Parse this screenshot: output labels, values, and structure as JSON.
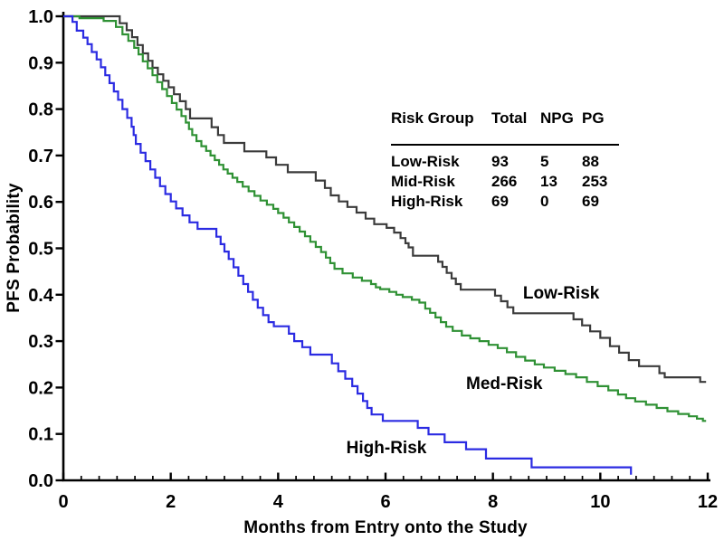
{
  "chart_data": {
    "type": "line",
    "subtype": "kaplan-meier-step",
    "title": "",
    "xlabel": "Months from Entry onto the Study",
    "ylabel": "PFS Probability",
    "xlim": [
      0,
      12
    ],
    "ylim": [
      0.0,
      1.0
    ],
    "xticks": [
      0,
      2,
      4,
      6,
      8,
      10,
      12
    ],
    "x_minor_ticks_per_interval": 5,
    "yticks": [
      0.0,
      0.1,
      0.2,
      0.3,
      0.4,
      0.5,
      0.6,
      0.7,
      0.8,
      0.9,
      1.0
    ],
    "grid": false,
    "legend_position": "labels-next-to-curves",
    "axis_color": "#000000",
    "background_color": "#ffffff",
    "series": [
      {
        "name": "Low-Risk",
        "color": "#3b3b3b",
        "label_at": {
          "x": 8.56,
          "y": 0.423
        },
        "points": [
          [
            0,
            1.0
          ],
          [
            1.05,
            0.985
          ],
          [
            1.18,
            0.97
          ],
          [
            1.28,
            0.955
          ],
          [
            1.38,
            0.938
          ],
          [
            1.48,
            0.92
          ],
          [
            1.58,
            0.904
          ],
          [
            1.66,
            0.889
          ],
          [
            1.76,
            0.875
          ],
          [
            1.86,
            0.861
          ],
          [
            1.96,
            0.847
          ],
          [
            2.06,
            0.832
          ],
          [
            2.17,
            0.817
          ],
          [
            2.28,
            0.8
          ],
          [
            2.36,
            0.78
          ],
          [
            2.76,
            0.761
          ],
          [
            2.88,
            0.744
          ],
          [
            2.99,
            0.727
          ],
          [
            3.37,
            0.709
          ],
          [
            3.78,
            0.696
          ],
          [
            3.96,
            0.68
          ],
          [
            4.18,
            0.664
          ],
          [
            4.7,
            0.646
          ],
          [
            4.87,
            0.63
          ],
          [
            4.98,
            0.614
          ],
          [
            5.13,
            0.601
          ],
          [
            5.29,
            0.589
          ],
          [
            5.46,
            0.577
          ],
          [
            5.63,
            0.564
          ],
          [
            5.79,
            0.552
          ],
          [
            6.02,
            0.544
          ],
          [
            6.16,
            0.534
          ],
          [
            6.28,
            0.522
          ],
          [
            6.37,
            0.511
          ],
          [
            6.43,
            0.502
          ],
          [
            6.51,
            0.484
          ],
          [
            6.98,
            0.471
          ],
          [
            7.06,
            0.46
          ],
          [
            7.14,
            0.447
          ],
          [
            7.23,
            0.435
          ],
          [
            7.31,
            0.423
          ],
          [
            7.4,
            0.411
          ],
          [
            8.04,
            0.398
          ],
          [
            8.15,
            0.386
          ],
          [
            8.27,
            0.373
          ],
          [
            8.38,
            0.36
          ],
          [
            9.5,
            0.347
          ],
          [
            9.66,
            0.334
          ],
          [
            9.81,
            0.321
          ],
          [
            10.0,
            0.307
          ],
          [
            10.18,
            0.289
          ],
          [
            10.35,
            0.275
          ],
          [
            10.53,
            0.259
          ],
          [
            10.72,
            0.246
          ],
          [
            11.1,
            0.231
          ],
          [
            11.2,
            0.222
          ],
          [
            11.86,
            0.212
          ],
          [
            11.97,
            0.212
          ]
        ]
      },
      {
        "name": "Med-Risk",
        "color": "#2f9134",
        "label_at": {
          "x": 7.5,
          "y": 0.228
        },
        "points": [
          [
            0,
            1.0
          ],
          [
            0.3,
            0.996
          ],
          [
            0.75,
            0.99
          ],
          [
            0.98,
            0.977
          ],
          [
            1.1,
            0.961
          ],
          [
            1.21,
            0.947
          ],
          [
            1.32,
            0.932
          ],
          [
            1.4,
            0.918
          ],
          [
            1.48,
            0.903
          ],
          [
            1.57,
            0.888
          ],
          [
            1.66,
            0.873
          ],
          [
            1.75,
            0.858
          ],
          [
            1.84,
            0.843
          ],
          [
            1.93,
            0.828
          ],
          [
            2.02,
            0.813
          ],
          [
            2.11,
            0.799
          ],
          [
            2.2,
            0.785
          ],
          [
            2.28,
            0.771
          ],
          [
            2.34,
            0.757
          ],
          [
            2.4,
            0.744
          ],
          [
            2.48,
            0.731
          ],
          [
            2.57,
            0.72
          ],
          [
            2.66,
            0.71
          ],
          [
            2.74,
            0.7
          ],
          [
            2.82,
            0.69
          ],
          [
            2.9,
            0.68
          ],
          [
            2.98,
            0.67
          ],
          [
            3.06,
            0.661
          ],
          [
            3.15,
            0.652
          ],
          [
            3.24,
            0.643
          ],
          [
            3.34,
            0.633
          ],
          [
            3.45,
            0.623
          ],
          [
            3.56,
            0.613
          ],
          [
            3.67,
            0.603
          ],
          [
            3.79,
            0.594
          ],
          [
            3.91,
            0.585
          ],
          [
            4.0,
            0.576
          ],
          [
            4.1,
            0.566
          ],
          [
            4.2,
            0.556
          ],
          [
            4.3,
            0.546
          ],
          [
            4.4,
            0.536
          ],
          [
            4.5,
            0.526
          ],
          [
            4.6,
            0.514
          ],
          [
            4.7,
            0.503
          ],
          [
            4.8,
            0.492
          ],
          [
            4.89,
            0.48
          ],
          [
            4.97,
            0.468
          ],
          [
            5.05,
            0.456
          ],
          [
            5.2,
            0.446
          ],
          [
            5.39,
            0.437
          ],
          [
            5.56,
            0.43
          ],
          [
            5.73,
            0.423
          ],
          [
            5.82,
            0.416
          ],
          [
            5.9,
            0.412
          ],
          [
            6.07,
            0.406
          ],
          [
            6.2,
            0.4
          ],
          [
            6.32,
            0.395
          ],
          [
            6.49,
            0.389
          ],
          [
            6.63,
            0.383
          ],
          [
            6.74,
            0.37
          ],
          [
            6.83,
            0.361
          ],
          [
            6.93,
            0.351
          ],
          [
            7.03,
            0.341
          ],
          [
            7.13,
            0.331
          ],
          [
            7.25,
            0.322
          ],
          [
            7.42,
            0.312
          ],
          [
            7.58,
            0.306
          ],
          [
            7.75,
            0.3
          ],
          [
            7.92,
            0.292
          ],
          [
            8.09,
            0.285
          ],
          [
            8.26,
            0.276
          ],
          [
            8.43,
            0.266
          ],
          [
            8.6,
            0.258
          ],
          [
            8.78,
            0.25
          ],
          [
            8.95,
            0.243
          ],
          [
            9.15,
            0.236
          ],
          [
            9.35,
            0.229
          ],
          [
            9.55,
            0.222
          ],
          [
            9.75,
            0.212
          ],
          [
            9.95,
            0.203
          ],
          [
            10.15,
            0.194
          ],
          [
            10.33,
            0.185
          ],
          [
            10.48,
            0.177
          ],
          [
            10.65,
            0.17
          ],
          [
            10.85,
            0.163
          ],
          [
            11.05,
            0.156
          ],
          [
            11.25,
            0.149
          ],
          [
            11.45,
            0.143
          ],
          [
            11.65,
            0.138
          ],
          [
            11.8,
            0.133
          ],
          [
            11.91,
            0.128
          ],
          [
            11.97,
            0.128
          ]
        ]
      },
      {
        "name": "High-Risk",
        "color": "#2b2be2",
        "label_at": {
          "x": 5.27,
          "y": 0.09
        },
        "points": [
          [
            0,
            1.0
          ],
          [
            0.17,
            0.988
          ],
          [
            0.25,
            0.969
          ],
          [
            0.37,
            0.954
          ],
          [
            0.45,
            0.94
          ],
          [
            0.53,
            0.923
          ],
          [
            0.62,
            0.907
          ],
          [
            0.7,
            0.89
          ],
          [
            0.78,
            0.873
          ],
          [
            0.86,
            0.856
          ],
          [
            0.94,
            0.838
          ],
          [
            1.02,
            0.82
          ],
          [
            1.1,
            0.8
          ],
          [
            1.19,
            0.781
          ],
          [
            1.27,
            0.762
          ],
          [
            1.31,
            0.744
          ],
          [
            1.35,
            0.725
          ],
          [
            1.44,
            0.706
          ],
          [
            1.53,
            0.688
          ],
          [
            1.62,
            0.67
          ],
          [
            1.71,
            0.652
          ],
          [
            1.8,
            0.634
          ],
          [
            1.9,
            0.617
          ],
          [
            2.0,
            0.601
          ],
          [
            2.1,
            0.586
          ],
          [
            2.22,
            0.571
          ],
          [
            2.35,
            0.556
          ],
          [
            2.5,
            0.542
          ],
          [
            2.85,
            0.525
          ],
          [
            2.93,
            0.509
          ],
          [
            3.0,
            0.493
          ],
          [
            3.08,
            0.477
          ],
          [
            3.17,
            0.459
          ],
          [
            3.26,
            0.441
          ],
          [
            3.35,
            0.423
          ],
          [
            3.44,
            0.406
          ],
          [
            3.53,
            0.389
          ],
          [
            3.62,
            0.372
          ],
          [
            3.72,
            0.356
          ],
          [
            3.82,
            0.341
          ],
          [
            3.92,
            0.332
          ],
          [
            4.2,
            0.316
          ],
          [
            4.3,
            0.3
          ],
          [
            4.45,
            0.287
          ],
          [
            4.6,
            0.271
          ],
          [
            5.0,
            0.252
          ],
          [
            5.12,
            0.235
          ],
          [
            5.25,
            0.219
          ],
          [
            5.38,
            0.203
          ],
          [
            5.48,
            0.187
          ],
          [
            5.58,
            0.171
          ],
          [
            5.66,
            0.156
          ],
          [
            5.74,
            0.142
          ],
          [
            5.95,
            0.128
          ],
          [
            6.6,
            0.113
          ],
          [
            6.8,
            0.099
          ],
          [
            7.1,
            0.082
          ],
          [
            7.5,
            0.067
          ],
          [
            7.87,
            0.047
          ],
          [
            8.72,
            0.028
          ],
          [
            10.57,
            0.012
          ]
        ]
      }
    ]
  },
  "risk_table": {
    "headers": [
      "Risk Group",
      "Total",
      "NPG",
      "PG"
    ],
    "rows": [
      [
        "Low-Risk",
        "93",
        "5",
        "88"
      ],
      [
        "Mid-Risk",
        "266",
        "13",
        "253"
      ],
      [
        "High-Risk",
        "69",
        "0",
        "69"
      ]
    ]
  }
}
